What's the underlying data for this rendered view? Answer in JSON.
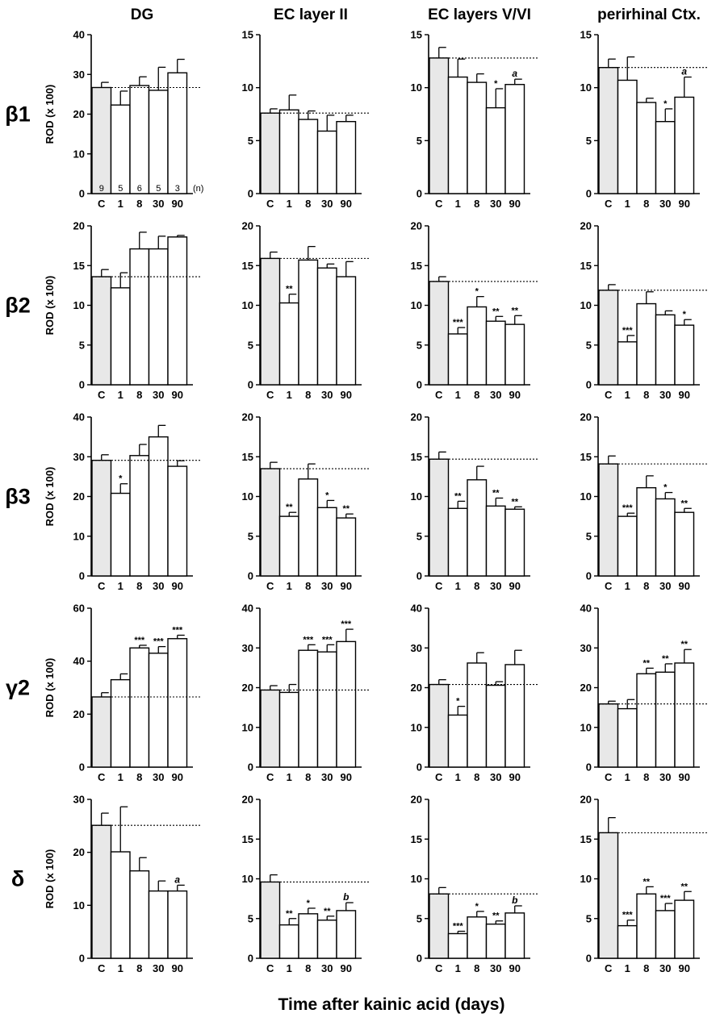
{
  "figure": {
    "column_titles": [
      "DG",
      "EC layer II",
      "EC layers V/VI",
      "perirhinal Ctx."
    ],
    "row_labels": [
      "β1",
      "β2",
      "β3",
      "γ2",
      "δ"
    ],
    "y_label": "ROD (x 100)",
    "x_label": "Time after kainic acid (days)",
    "n_label": "(n)",
    "n_values": [
      "9",
      "5",
      "6",
      "5",
      "3"
    ]
  },
  "chart_data": [
    {
      "type": "bar",
      "row": "β1",
      "column": "DG",
      "categories": [
        "C",
        "1",
        "8",
        "30",
        "90"
      ],
      "values": [
        26.7,
        22.3,
        27.2,
        26.0,
        30.4
      ],
      "errors": [
        1.3,
        3.5,
        2.2,
        5.8,
        3.4
      ],
      "baseline": 26.7,
      "ylim": [
        0,
        40
      ],
      "yticks": [
        0,
        10,
        20,
        30,
        40
      ],
      "significance": [
        "",
        "",
        "",
        "",
        ""
      ]
    },
    {
      "type": "bar",
      "row": "β1",
      "column": "EC layer II",
      "categories": [
        "C",
        "1",
        "8",
        "30",
        "90"
      ],
      "values": [
        7.6,
        7.9,
        7.0,
        5.9,
        6.8
      ],
      "errors": [
        0.4,
        1.4,
        0.8,
        1.5,
        0.6
      ],
      "baseline": 7.6,
      "ylim": [
        0,
        15
      ],
      "yticks": [
        0,
        5,
        10,
        15
      ],
      "significance": [
        "",
        "",
        "",
        "",
        ""
      ]
    },
    {
      "type": "bar",
      "row": "β1",
      "column": "EC layers V/VI",
      "categories": [
        "C",
        "1",
        "8",
        "30",
        "90"
      ],
      "values": [
        12.8,
        11.0,
        10.5,
        8.1,
        10.3
      ],
      "errors": [
        1.0,
        1.7,
        0.8,
        1.8,
        0.5
      ],
      "baseline": 12.8,
      "ylim": [
        0,
        15
      ],
      "yticks": [
        0,
        5,
        10,
        15
      ],
      "significance": [
        "",
        "",
        "",
        "*",
        "a"
      ]
    },
    {
      "type": "bar",
      "row": "β1",
      "column": "perirhinal Ctx.",
      "categories": [
        "C",
        "1",
        "8",
        "30",
        "90"
      ],
      "values": [
        11.9,
        10.7,
        8.6,
        6.8,
        9.1
      ],
      "errors": [
        0.8,
        2.2,
        0.4,
        1.2,
        1.9
      ],
      "baseline": 11.9,
      "ylim": [
        0,
        15
      ],
      "yticks": [
        0,
        5,
        10,
        15
      ],
      "significance": [
        "",
        "",
        "",
        "*",
        "a"
      ]
    },
    {
      "type": "bar",
      "row": "β2",
      "column": "DG",
      "categories": [
        "C",
        "1",
        "8",
        "30",
        "90"
      ],
      "values": [
        13.6,
        12.2,
        17.1,
        17.1,
        18.6
      ],
      "errors": [
        0.9,
        1.9,
        2.1,
        1.6,
        0.2
      ],
      "baseline": 13.6,
      "ylim": [
        0,
        20
      ],
      "yticks": [
        0,
        5,
        10,
        15,
        20
      ],
      "significance": [
        "",
        "",
        "",
        "",
        ""
      ]
    },
    {
      "type": "bar",
      "row": "β2",
      "column": "EC layer II",
      "categories": [
        "C",
        "1",
        "8",
        "30",
        "90"
      ],
      "values": [
        15.9,
        10.3,
        15.7,
        14.7,
        13.6
      ],
      "errors": [
        0.8,
        1.1,
        1.7,
        0.5,
        1.9
      ],
      "baseline": 15.9,
      "ylim": [
        0,
        20
      ],
      "yticks": [
        0,
        5,
        10,
        15,
        20
      ],
      "significance": [
        "",
        "**",
        "",
        "",
        ""
      ]
    },
    {
      "type": "bar",
      "row": "β2",
      "column": "EC layers V/VI",
      "categories": [
        "C",
        "1",
        "8",
        "30",
        "90"
      ],
      "values": [
        13.0,
        6.4,
        9.8,
        8.0,
        7.6
      ],
      "errors": [
        0.6,
        0.8,
        1.3,
        0.6,
        1.1
      ],
      "baseline": 13.0,
      "ylim": [
        0,
        20
      ],
      "yticks": [
        0,
        5,
        10,
        15,
        20
      ],
      "significance": [
        "",
        "***",
        "*",
        "**",
        "**"
      ]
    },
    {
      "type": "bar",
      "row": "β2",
      "column": "perirhinal Ctx.",
      "categories": [
        "C",
        "1",
        "8",
        "30",
        "90"
      ],
      "values": [
        11.9,
        5.4,
        10.2,
        8.8,
        7.5
      ],
      "errors": [
        0.7,
        0.8,
        1.5,
        0.5,
        0.7
      ],
      "baseline": 11.9,
      "ylim": [
        0,
        20
      ],
      "yticks": [
        0,
        5,
        10,
        15,
        20
      ],
      "significance": [
        "",
        "***",
        "",
        "",
        "*"
      ]
    },
    {
      "type": "bar",
      "row": "β3",
      "column": "DG",
      "categories": [
        "C",
        "1",
        "8",
        "30",
        "90"
      ],
      "values": [
        29.1,
        20.8,
        30.3,
        35.0,
        27.6
      ],
      "errors": [
        1.4,
        2.4,
        2.8,
        2.9,
        1.4
      ],
      "baseline": 29.1,
      "ylim": [
        0,
        40
      ],
      "yticks": [
        0,
        10,
        20,
        30,
        40
      ],
      "significance": [
        "",
        "*",
        "",
        "",
        ""
      ]
    },
    {
      "type": "bar",
      "row": "β3",
      "column": "EC layer II",
      "categories": [
        "C",
        "1",
        "8",
        "30",
        "90"
      ],
      "values": [
        13.5,
        7.5,
        12.2,
        8.6,
        7.3
      ],
      "errors": [
        0.8,
        0.5,
        1.9,
        0.9,
        0.5
      ],
      "baseline": 13.5,
      "ylim": [
        0,
        20
      ],
      "yticks": [
        0,
        5,
        10,
        15,
        20
      ],
      "significance": [
        "",
        "**",
        "",
        "*",
        "**"
      ]
    },
    {
      "type": "bar",
      "row": "β3",
      "column": "EC layers V/VI",
      "categories": [
        "C",
        "1",
        "8",
        "30",
        "90"
      ],
      "values": [
        14.7,
        8.5,
        12.1,
        8.8,
        8.4
      ],
      "errors": [
        0.9,
        0.9,
        1.7,
        1.0,
        0.3
      ],
      "baseline": 14.7,
      "ylim": [
        0,
        20
      ],
      "yticks": [
        0,
        5,
        10,
        15,
        20
      ],
      "significance": [
        "",
        "**",
        "",
        "**",
        "**"
      ]
    },
    {
      "type": "bar",
      "row": "β3",
      "column": "perirhinal Ctx.",
      "categories": [
        "C",
        "1",
        "8",
        "30",
        "90"
      ],
      "values": [
        14.1,
        7.5,
        11.1,
        9.7,
        8.0
      ],
      "errors": [
        1.0,
        0.4,
        1.5,
        0.8,
        0.5
      ],
      "baseline": 14.1,
      "ylim": [
        0,
        20
      ],
      "yticks": [
        0,
        5,
        10,
        15,
        20
      ],
      "significance": [
        "",
        "***",
        "",
        "*",
        "**"
      ]
    },
    {
      "type": "bar",
      "row": "γ2",
      "column": "DG",
      "categories": [
        "C",
        "1",
        "8",
        "30",
        "90"
      ],
      "values": [
        26.5,
        33.0,
        45.0,
        43.0,
        48.5
      ],
      "errors": [
        1.6,
        2.2,
        1.0,
        2.5,
        1.3
      ],
      "baseline": 26.5,
      "ylim": [
        0,
        60
      ],
      "yticks": [
        0,
        20,
        40,
        60
      ],
      "significance": [
        "",
        "",
        "***",
        "***",
        "***"
      ]
    },
    {
      "type": "bar",
      "row": "γ2",
      "column": "EC layer II",
      "categories": [
        "C",
        "1",
        "8",
        "30",
        "90"
      ],
      "values": [
        19.4,
        18.8,
        29.4,
        29.0,
        31.6
      ],
      "errors": [
        1.1,
        2.0,
        1.4,
        1.8,
        3.1
      ],
      "baseline": 19.4,
      "ylim": [
        0,
        40
      ],
      "yticks": [
        0,
        10,
        20,
        30,
        40
      ],
      "significance": [
        "",
        "",
        "***",
        "***",
        "***"
      ]
    },
    {
      "type": "bar",
      "row": "γ2",
      "column": "EC layers V/VI",
      "categories": [
        "C",
        "1",
        "8",
        "30",
        "90"
      ],
      "values": [
        20.8,
        13.1,
        26.2,
        20.6,
        25.8
      ],
      "errors": [
        1.2,
        2.2,
        2.6,
        0.9,
        3.6
      ],
      "baseline": 20.8,
      "ylim": [
        0,
        40
      ],
      "yticks": [
        0,
        10,
        20,
        30,
        40
      ],
      "significance": [
        "",
        "*",
        "",
        "",
        ""
      ]
    },
    {
      "type": "bar",
      "row": "γ2",
      "column": "perirhinal Ctx.",
      "categories": [
        "C",
        "1",
        "8",
        "30",
        "90"
      ],
      "values": [
        15.9,
        14.7,
        23.5,
        23.9,
        26.2
      ],
      "errors": [
        0.7,
        2.3,
        1.4,
        2.1,
        3.4
      ],
      "baseline": 15.9,
      "ylim": [
        0,
        40
      ],
      "yticks": [
        0,
        10,
        20,
        30,
        40
      ],
      "significance": [
        "",
        "",
        "**",
        "**",
        "**"
      ]
    },
    {
      "type": "bar",
      "row": "δ",
      "column": "DG",
      "categories": [
        "C",
        "1",
        "8",
        "30",
        "90"
      ],
      "values": [
        25.1,
        20.1,
        16.5,
        12.7,
        12.7
      ],
      "errors": [
        2.3,
        8.5,
        2.5,
        1.9,
        1.1
      ],
      "baseline": 25.1,
      "ylim": [
        0,
        30
      ],
      "yticks": [
        0,
        10,
        20,
        30
      ],
      "significance": [
        "",
        "",
        "",
        "",
        "a"
      ]
    },
    {
      "type": "bar",
      "row": "δ",
      "column": "EC layer II",
      "categories": [
        "C",
        "1",
        "8",
        "30",
        "90"
      ],
      "values": [
        9.6,
        4.2,
        5.6,
        4.8,
        6.0
      ],
      "errors": [
        0.9,
        0.8,
        0.7,
        0.5,
        1.0
      ],
      "baseline": 9.6,
      "ylim": [
        0,
        20
      ],
      "yticks": [
        0,
        5,
        10,
        15,
        20
      ],
      "significance": [
        "",
        "**",
        "*",
        "**",
        "b"
      ]
    },
    {
      "type": "bar",
      "row": "δ",
      "column": "EC layers V/VI",
      "categories": [
        "C",
        "1",
        "8",
        "30",
        "90"
      ],
      "values": [
        8.1,
        3.1,
        5.2,
        4.3,
        5.7
      ],
      "errors": [
        0.8,
        0.3,
        0.7,
        0.4,
        0.9
      ],
      "baseline": 8.1,
      "ylim": [
        0,
        20
      ],
      "yticks": [
        0,
        5,
        10,
        15,
        20
      ],
      "significance": [
        "",
        "***",
        "*",
        "**",
        "b"
      ]
    },
    {
      "type": "bar",
      "row": "δ",
      "column": "perirhinal Ctx.",
      "categories": [
        "C",
        "1",
        "8",
        "30",
        "90"
      ],
      "values": [
        15.8,
        4.1,
        8.1,
        6.0,
        7.3
      ],
      "errors": [
        1.9,
        0.7,
        0.9,
        0.9,
        1.1
      ],
      "baseline": 15.8,
      "ylim": [
        0,
        20
      ],
      "yticks": [
        0,
        5,
        10,
        15,
        20
      ],
      "significance": [
        "",
        "***",
        "**",
        "***",
        "**"
      ]
    }
  ],
  "colors": {
    "control_bar": "#e8e8e8",
    "treated_bar": "#ffffff",
    "stroke": "#000000"
  }
}
